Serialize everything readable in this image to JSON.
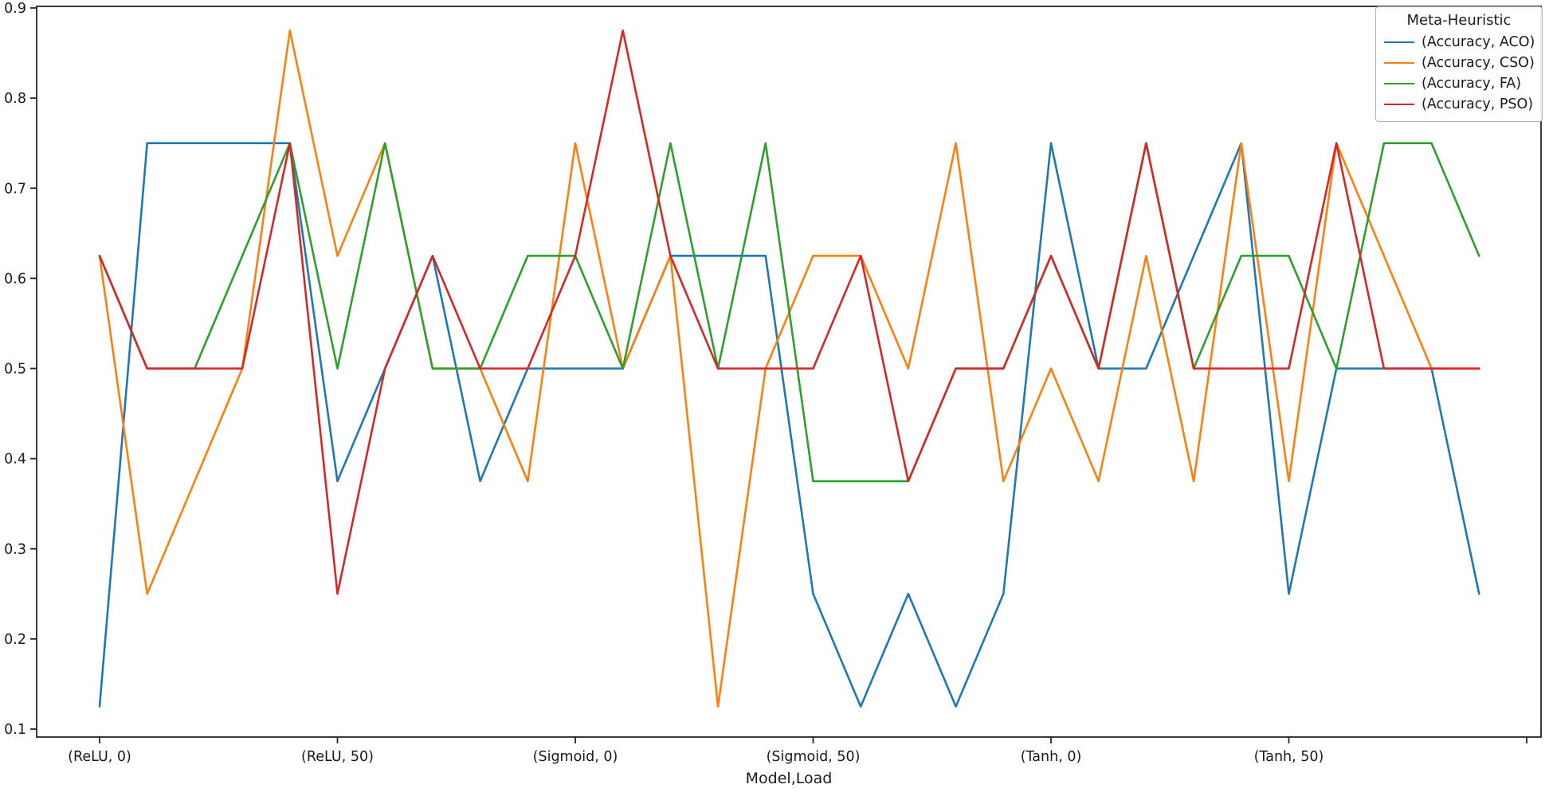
{
  "chart_data": {
    "type": "line",
    "title": "",
    "xlabel": "Model,Load",
    "ylabel": "",
    "ylim": [
      0.1,
      0.9
    ],
    "grid": false,
    "background": "#ffffff",
    "spine_color": "#262626",
    "y_ticks": [
      0.1,
      0.2,
      0.3,
      0.4,
      0.5,
      0.6,
      0.7,
      0.8,
      0.9
    ],
    "y_tick_labels": [
      "0.1",
      "0.2",
      "0.3",
      "0.4",
      "0.5",
      "0.6",
      "0.7",
      "0.8",
      "0.9"
    ],
    "x_tick_labels": [
      "(ReLU, 0)",
      "(ReLU, 50)",
      "(Sigmoid, 0)",
      "(Sigmoid, 50)",
      "(Tanh, 0)",
      "(Tanh, 50)"
    ],
    "x_tick_positions": [
      0,
      5,
      10,
      15,
      20,
      25,
      30
    ],
    "points_per_group": 5,
    "n_points": 30,
    "legend": {
      "title": "Meta-Heuristic",
      "position": "upper right"
    },
    "series": [
      {
        "name": "(Accuracy, ACO)",
        "color": "#1f77b4",
        "values": [
          0.125,
          0.75,
          0.75,
          0.75,
          0.75,
          0.375,
          0.5,
          0.625,
          0.375,
          0.5,
          0.5,
          0.5,
          0.625,
          0.625,
          0.625,
          0.25,
          0.125,
          0.25,
          0.125,
          0.25,
          0.75,
          0.5,
          0.5,
          0.625,
          0.75,
          0.25,
          0.5,
          0.5,
          0.5,
          0.25
        ]
      },
      {
        "name": "(Accuracy, CSO)",
        "color": "#ff7f0e",
        "values": [
          0.625,
          0.25,
          0.375,
          0.5,
          0.875,
          0.625,
          0.75,
          0.5,
          0.5,
          0.375,
          0.75,
          0.5,
          0.625,
          0.125,
          0.5,
          0.625,
          0.625,
          0.5,
          0.75,
          0.375,
          0.5,
          0.375,
          0.625,
          0.375,
          0.75,
          0.375,
          0.75,
          0.625,
          0.5,
          0.5
        ]
      },
      {
        "name": "(Accuracy, FA)",
        "color": "#2ca02c",
        "values": [
          0.625,
          0.5,
          0.5,
          0.625,
          0.75,
          0.5,
          0.75,
          0.5,
          0.5,
          0.625,
          0.625,
          0.5,
          0.75,
          0.5,
          0.75,
          0.375,
          0.375,
          0.375,
          0.5,
          0.5,
          0.625,
          0.5,
          0.75,
          0.5,
          0.625,
          0.625,
          0.5,
          0.75,
          0.75,
          0.625
        ]
      },
      {
        "name": "(Accuracy, PSO)",
        "color": "#d62728",
        "values": [
          0.625,
          0.5,
          0.5,
          0.5,
          0.75,
          0.25,
          0.5,
          0.625,
          0.5,
          0.5,
          0.625,
          0.875,
          0.625,
          0.5,
          0.5,
          0.5,
          0.625,
          0.375,
          0.5,
          0.5,
          0.625,
          0.5,
          0.75,
          0.5,
          0.5,
          0.5,
          0.75,
          0.5,
          0.5,
          0.5
        ]
      }
    ]
  }
}
